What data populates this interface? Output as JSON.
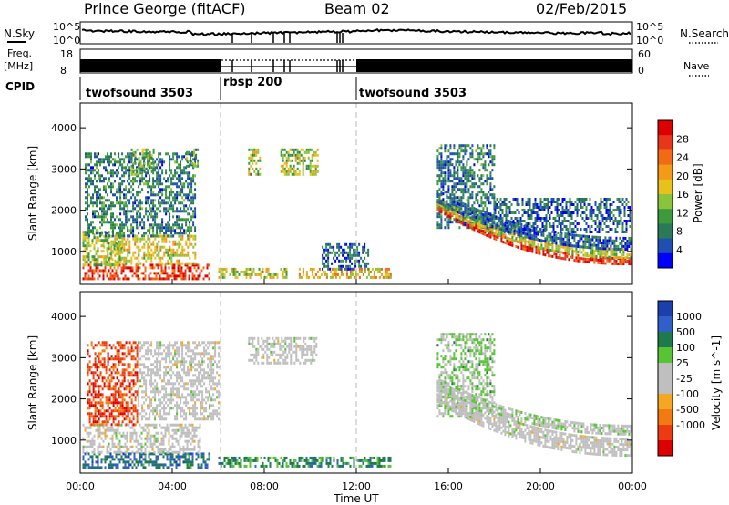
{
  "header": {
    "station": "Prince George (fitACF)",
    "beam": "Beam 02",
    "date": "02/Feb/2015"
  },
  "labels": {
    "nsky": "N.Sky",
    "nsearch": "N.Search",
    "freq": "Freq.",
    "mhz": "[MHz]",
    "nave": "Nave",
    "cpid": "CPID"
  },
  "cpid_segments": [
    {
      "name": "twofsound 3503",
      "start": 0,
      "end": 6
    },
    {
      "name": "rbsp 200",
      "start": 6,
      "end": 12
    },
    {
      "name": "twofsound 3503",
      "start": 12,
      "end": 24
    }
  ],
  "chart_data": [
    {
      "type": "line",
      "panel": "noise",
      "left_axis": {
        "label": "N.Sky",
        "ticks": [
          "10^5",
          "10^0"
        ]
      },
      "right_axis": {
        "label": "N.Search",
        "ticks": [
          "10^5",
          "10^0"
        ]
      }
    },
    {
      "type": "line",
      "panel": "frequency / nave",
      "left_axis": {
        "label": "Freq. [MHz]",
        "ticks": [
          18,
          8
        ]
      },
      "right_axis": {
        "label": "Nave",
        "ticks": [
          60,
          0
        ]
      }
    },
    {
      "type": "heatmap",
      "panel": "power",
      "xlabel": "",
      "ylabel": "Slant Range [km]",
      "yticks": [
        1000,
        2000,
        3000,
        4000
      ],
      "ylim": [
        200,
        4600
      ],
      "xlim": [
        0,
        24
      ],
      "colorbar": {
        "label": "Power [dB]",
        "ticks": [
          4,
          8,
          12,
          16,
          20,
          24,
          28
        ],
        "colors": [
          "#0000ff",
          "#1f4fb0",
          "#2a7a5a",
          "#3c9a3c",
          "#8ac43a",
          "#e6c21a",
          "#f49a18",
          "#f26a14",
          "#e8361a",
          "#dd0000"
        ]
      },
      "regions": [
        {
          "t0": 0.1,
          "t1": 5.6,
          "r0": 350,
          "r1": 700,
          "level": 0.85
        },
        {
          "t0": 1.0,
          "t1": 5.0,
          "r0": 700,
          "r1": 1400,
          "level": 0.55
        },
        {
          "t0": 0.1,
          "t1": 1.8,
          "r0": 700,
          "r1": 1500,
          "level": 0.45
        },
        {
          "t0": 0.2,
          "t1": 5.0,
          "r0": 1400,
          "r1": 3400,
          "level": 0.25
        },
        {
          "t0": 2.2,
          "t1": 3.2,
          "r0": 2900,
          "r1": 3500,
          "level": 0.4
        },
        {
          "t0": 4.6,
          "t1": 5.1,
          "r0": 3100,
          "r1": 3500,
          "level": 0.35
        },
        {
          "t0": 6.0,
          "t1": 9.0,
          "r0": 350,
          "r1": 600,
          "level": 0.5
        },
        {
          "t0": 7.3,
          "t1": 7.8,
          "r0": 2900,
          "r1": 3500,
          "level": 0.45
        },
        {
          "t0": 8.7,
          "t1": 10.3,
          "r0": 2900,
          "r1": 3500,
          "level": 0.45
        },
        {
          "t0": 9.5,
          "t1": 13.5,
          "r0": 350,
          "r1": 600,
          "level": 0.6
        },
        {
          "t0": 10.5,
          "t1": 12.5,
          "r0": 600,
          "r1": 1200,
          "level": 0.2
        },
        {
          "t0": 15.5,
          "t1": 18.0,
          "r0": 1600,
          "r1": 3600,
          "level": 0.25
        },
        {
          "t0": 18.0,
          "t1": 23.9,
          "r0": 1500,
          "r1": 2300,
          "level": 0.2
        }
      ],
      "arcs": [
        {
          "t0": 15.5,
          "t1": 23.9,
          "rA": 2100,
          "rB": 780,
          "width": 160,
          "level": 0.9
        },
        {
          "t0": 15.5,
          "t1": 23.9,
          "rA": 2200,
          "rB": 950,
          "width": 260,
          "level": 0.5
        },
        {
          "t0": 15.5,
          "t1": 23.9,
          "rA": 2350,
          "rB": 1200,
          "width": 300,
          "level": 0.2
        }
      ]
    },
    {
      "type": "heatmap",
      "panel": "velocity",
      "xlabel": "Time UT",
      "ylabel": "Slant Range [km]",
      "yticks": [
        1000,
        2000,
        3000,
        4000
      ],
      "ylim": [
        200,
        4600
      ],
      "xlim": [
        0,
        24
      ],
      "xticks": [
        "00:00",
        "04:00",
        "08:00",
        "12:00",
        "16:00",
        "20:00",
        "00:00"
      ],
      "colorbar": {
        "label": "Velocity [m s^-1]",
        "ticks": [
          "1000",
          "500",
          "100",
          "25",
          "-25",
          "-100",
          "-500",
          "-1000"
        ],
        "colors": [
          "#1c3fb0",
          "#2f5fc8",
          "#1e7a4a",
          "#57c434",
          "#bfbfbf",
          "#bfbfbf",
          "#f5a623",
          "#f27a10",
          "#ee3a10",
          "#dd0000"
        ]
      },
      "regions": [
        {
          "t0": 0.1,
          "t1": 5.6,
          "r0": 350,
          "r1": 700,
          "level": 0.2
        },
        {
          "t0": 0.1,
          "t1": 5.2,
          "r0": 700,
          "r1": 1400,
          "level": 0.5
        },
        {
          "t0": 0.3,
          "t1": 2.5,
          "r0": 1400,
          "r1": 3400,
          "level": 0.85
        },
        {
          "t0": 2.5,
          "t1": 6.0,
          "r0": 1500,
          "r1": 3400,
          "level": 0.5
        },
        {
          "t0": 6.0,
          "t1": 13.5,
          "r0": 350,
          "r1": 600,
          "level": 0.28
        },
        {
          "t0": 7.3,
          "t1": 10.3,
          "r0": 2900,
          "r1": 3500,
          "level": 0.5
        },
        {
          "t0": 15.5,
          "t1": 18.0,
          "r0": 1600,
          "r1": 3600,
          "level": 0.4
        }
      ],
      "arcs": [
        {
          "t0": 15.5,
          "t1": 23.9,
          "rA": 2150,
          "rB": 850,
          "width": 420,
          "level": 0.5
        },
        {
          "t0": 15.5,
          "t1": 23.9,
          "rA": 2400,
          "rB": 1250,
          "width": 250,
          "level": 0.45
        }
      ]
    }
  ]
}
